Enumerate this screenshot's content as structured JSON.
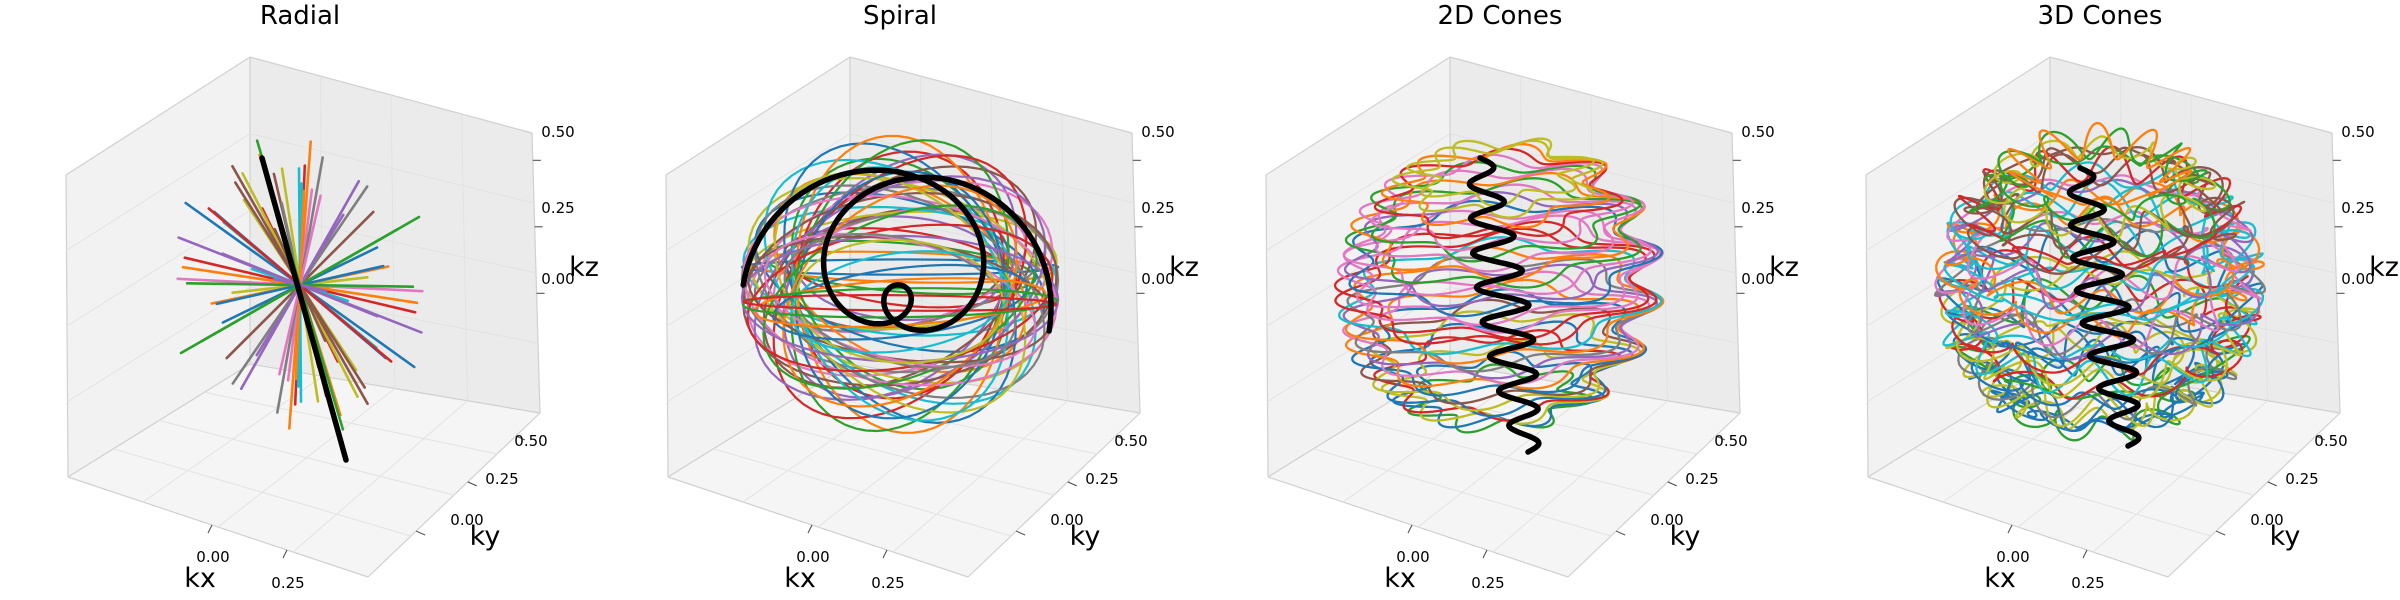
{
  "chart_data": [
    {
      "type": "line3d",
      "title": "Radial",
      "xlabel": "kx",
      "ylabel": "ky",
      "zlabel": "kz",
      "xticks": [
        "0.00",
        "0.25"
      ],
      "yticks": [
        "0.00",
        "0.25",
        "0.50"
      ],
      "zticks": [
        "0.00",
        "0.25",
        "0.50"
      ],
      "xlim": [
        -0.5,
        0.5
      ],
      "ylim": [
        -0.5,
        0.5
      ],
      "zlim": [
        -0.5,
        0.5
      ],
      "trajectory": "radial",
      "highlight_color": "#000000"
    },
    {
      "type": "line3d",
      "title": "Spiral",
      "xlabel": "kx",
      "ylabel": "ky",
      "zlabel": "kz",
      "xticks": [
        "0.00",
        "0.25"
      ],
      "yticks": [
        "0.00",
        "0.25",
        "0.50"
      ],
      "zticks": [
        "0.00",
        "0.25",
        "0.50"
      ],
      "xlim": [
        -0.5,
        0.5
      ],
      "ylim": [
        -0.5,
        0.5
      ],
      "zlim": [
        -0.5,
        0.5
      ],
      "trajectory": "spiral",
      "highlight_color": "#000000"
    },
    {
      "type": "line3d",
      "title": "2D Cones",
      "xlabel": "kx",
      "ylabel": "ky",
      "zlabel": "kz",
      "xticks": [
        "0.00",
        "0.25"
      ],
      "yticks": [
        "0.00",
        "0.25",
        "0.50"
      ],
      "zticks": [
        "0.00",
        "0.25",
        "0.50"
      ],
      "xlim": [
        -0.5,
        0.5
      ],
      "ylim": [
        -0.5,
        0.5
      ],
      "zlim": [
        -0.5,
        0.5
      ],
      "trajectory": "2d-cones",
      "highlight_color": "#000000"
    },
    {
      "type": "line3d",
      "title": "3D Cones",
      "xlabel": "kx",
      "ylabel": "ky",
      "zlabel": "kz",
      "xticks": [
        "0.00",
        "0.25"
      ],
      "yticks": [
        "0.00",
        "0.25",
        "0.50"
      ],
      "zticks": [
        "0.00",
        "0.25",
        "0.50"
      ],
      "xlim": [
        -0.5,
        0.5
      ],
      "ylim": [
        -0.5,
        0.5
      ],
      "zlim": [
        -0.5,
        0.5
      ],
      "trajectory": "3d-cones",
      "highlight_color": "#000000"
    }
  ],
  "palette": [
    "#1f77b4",
    "#ff7f0e",
    "#2ca02c",
    "#d62728",
    "#9467bd",
    "#8c564b",
    "#e377c2",
    "#7f7f7f",
    "#bcbd22",
    "#17becf"
  ]
}
